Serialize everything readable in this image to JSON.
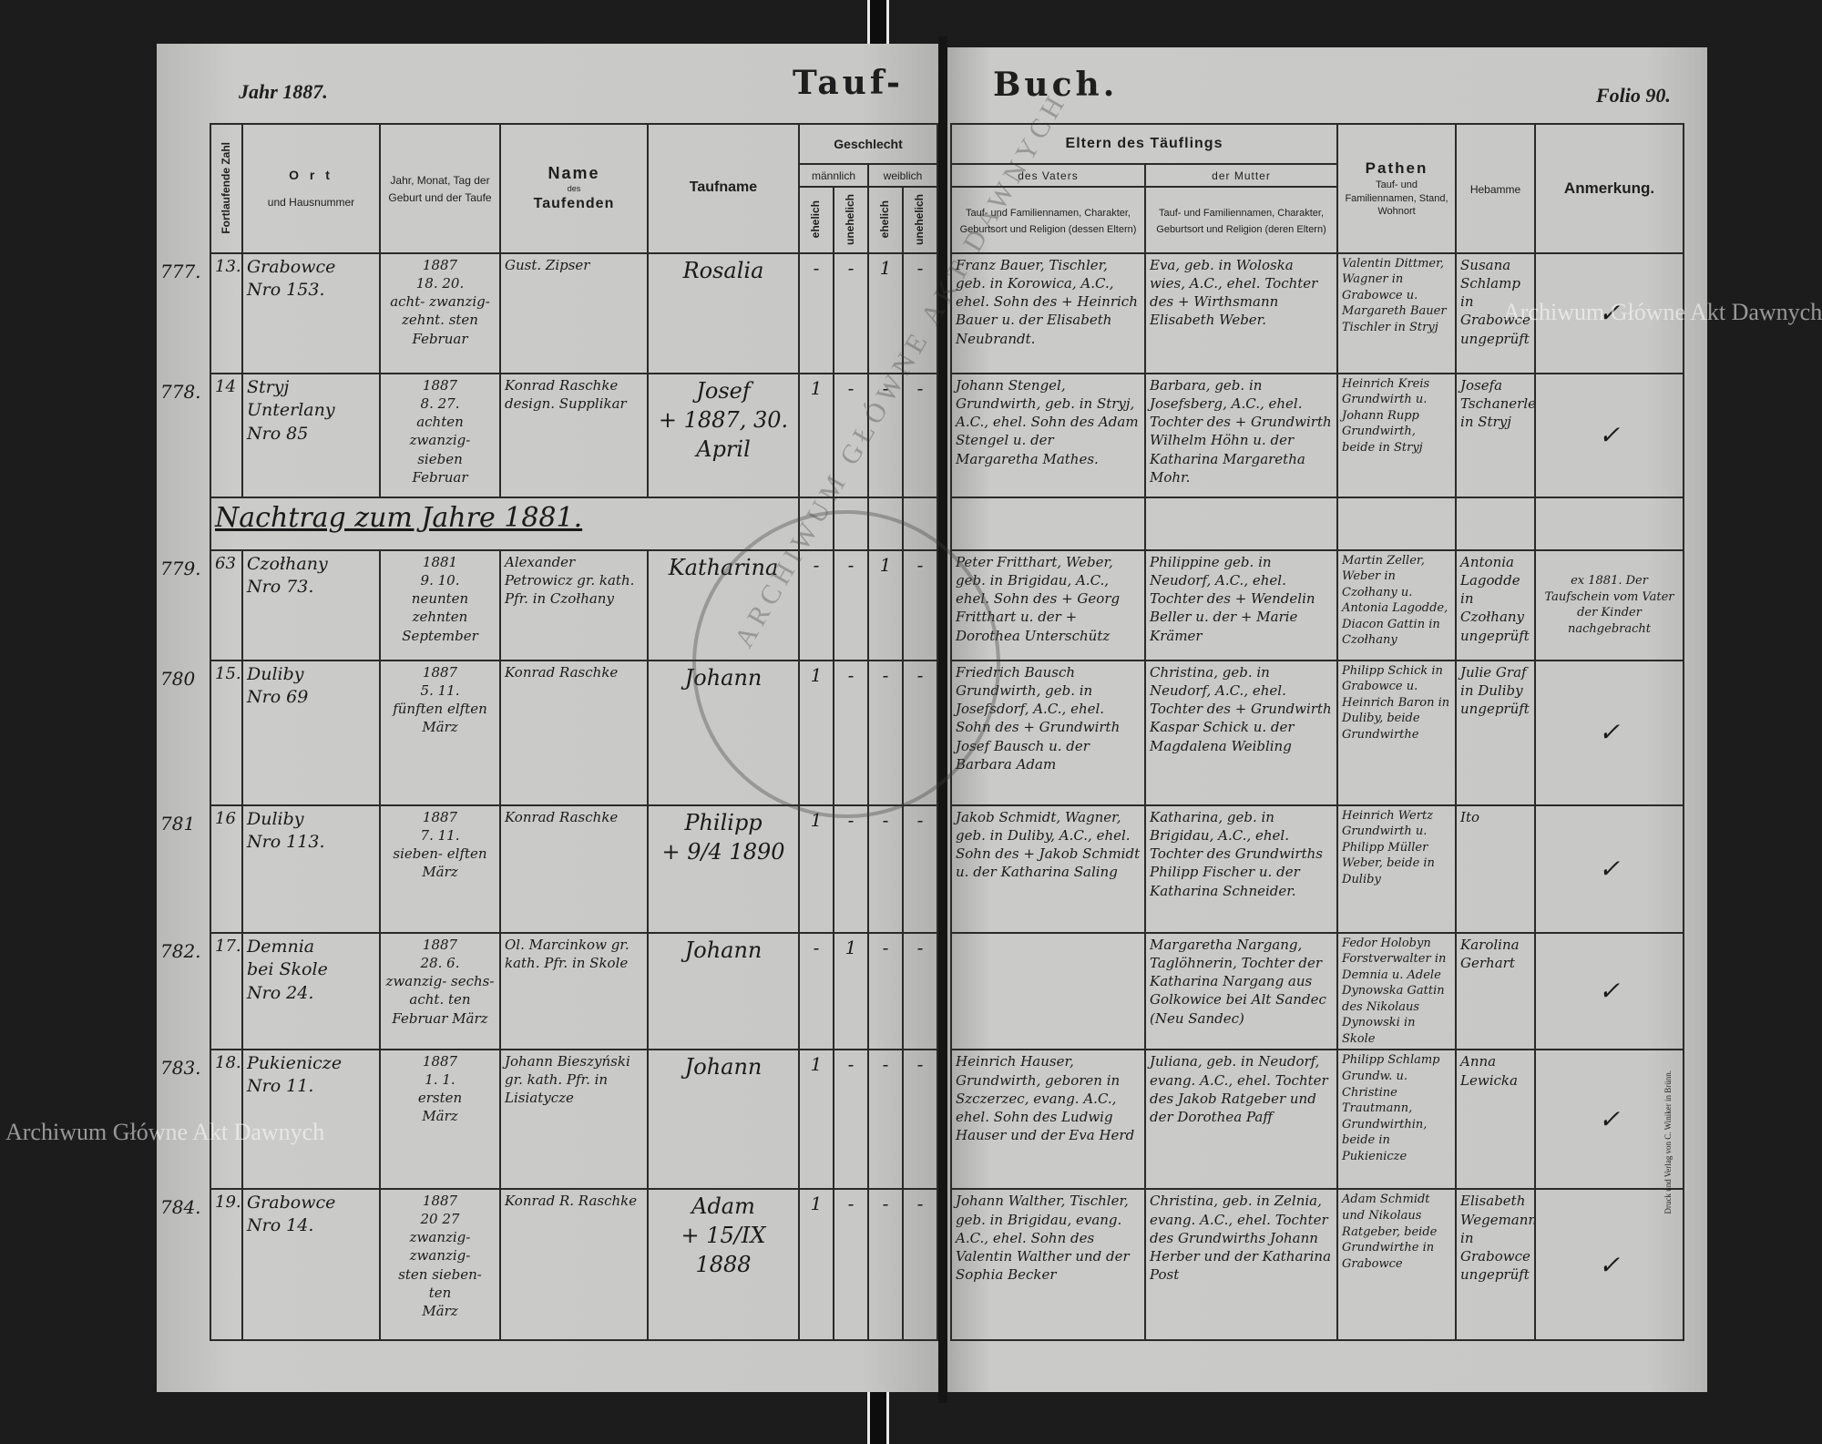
{
  "header": {
    "year_label": "Jahr 1887.",
    "title_left": "Tauf-",
    "title_right": "Buch.",
    "folio_label": "Folio 90."
  },
  "columns_left": {
    "fortlaufende_zahl": "Fortlaufende Zahl",
    "ort": "O r t",
    "ort_sub": "und Hausnummer",
    "jahr": "Jahr, Monat, Tag der Geburt und der Taufe",
    "name": "Name",
    "name_des": "des",
    "name_taufenden": "Taufenden",
    "taufname": "Taufname",
    "geschlecht": "Geschlecht",
    "maennlich": "männlich",
    "weiblich": "weiblich",
    "ehelich": "ehelich",
    "unehelich": "unehelich"
  },
  "columns_right": {
    "eltern": "Eltern des Täuflings",
    "vater": "des Vaters",
    "mutter": "der Mutter",
    "vater_desc": "Tauf- und Familiennamen, Charakter, Geburtsort und Religion (dessen Eltern)",
    "mutter_desc": "Tauf- und Familiennamen, Charakter, Geburtsort und Religion (deren Eltern)",
    "pathen": "Pathen",
    "pathen_desc": "Tauf- und Familiennamen, Stand, Wohnort",
    "hebamme": "Hebamme",
    "anmerkung": "Anmerkung."
  },
  "rows": [
    {
      "type": "entry",
      "register_no": "777.",
      "no": "13.",
      "ort": "Grabowce\nNro 153.",
      "datum": "1887\n18.   20.\nacht-  zwanzig-\nzehnt.  sten\nFebruar",
      "taufender": "Gust. Zipser",
      "taufname": "Rosalia",
      "sex": [
        "-",
        "-",
        "1",
        "-"
      ],
      "vater": "Franz Bauer, Tischler, geb. in Korowica, A.C., ehel. Sohn des + Heinrich Bauer u. der Elisabeth Neubrandt.",
      "mutter": "Eva, geb. in Woloska wies, A.C., ehel. Tochter des + Wirthsmann Elisabeth Weber.",
      "pathen": "Valentin Dittmer, Wagner in Grabowce u. Margareth Bauer Tischler in Stryj",
      "hebamme": "Susana Schlamp in Grabowce ungeprüft",
      "anmerkung": "✓"
    },
    {
      "type": "entry",
      "register_no": "778.",
      "no": "14",
      "ort": "Stryj\nUnterlany\nNro 85",
      "datum": "1887\n8.    27.\nachten zwanzig-\nsieben\nFebruar",
      "taufender": "Konrad Raschke design. Supplikar",
      "taufname": "Josef\n+ 1887, 30. April",
      "sex": [
        "1",
        "-",
        "-",
        "-"
      ],
      "vater": "Johann Stengel, Grundwirth, geb. in Stryj, A.C., ehel. Sohn des Adam Stengel u. der Margaretha Mathes.",
      "mutter": "Barbara, geb. in Josefsberg, A.C., ehel. Tochter des + Grundwirth Wilhelm Höhn u. der Katharina Margaretha Mohr.",
      "pathen": "Heinrich Kreis Grundwirth u. Johann Rupp Grundwirth, beide in Stryj",
      "hebamme": "Josefa Tschanerle in Stryj",
      "anmerkung": "✓"
    },
    {
      "type": "note",
      "text": "Nachtrag zum Jahre 1881."
    },
    {
      "type": "entry",
      "register_no": "779.",
      "no": "63",
      "ort": "Czołhany\nNro 73.",
      "datum": "1881\n9.    10.\nneunten zehnten\nSeptember",
      "taufender": "Alexander Petrowicz gr. kath. Pfr. in Czołhany",
      "taufname": "Katharina",
      "sex": [
        "-",
        "-",
        "1",
        "-"
      ],
      "vater": "Peter Fritthart, Weber, geb. in Brigidau, A.C., ehel. Sohn des + Georg Fritthart u. der + Dorothea Unterschütz",
      "mutter": "Philippine geb. in Neudorf, A.C., ehel. Tochter des + Wendelin Beller u. der + Marie Krämer",
      "pathen": "Martin Zeller, Weber in Czołhany u. Antonia Lagodde, Diacon Gattin in Czołhany",
      "hebamme": "Antonia Lagodde in Czołhany ungeprüft",
      "anmerkung": "ex 1881. Der Taufschein vom Vater der Kinder nachgebracht"
    },
    {
      "type": "entry",
      "register_no": "780",
      "no": "15.",
      "ort": "Duliby\nNro 69",
      "datum": "1887\n5.    11.\nfünften elften\nMärz",
      "taufender": "Konrad Raschke",
      "taufname": "Johann",
      "sex": [
        "1",
        "-",
        "-",
        "-"
      ],
      "vater": "Friedrich Bausch Grundwirth, geb. in Josefsdorf, A.C., ehel. Sohn des + Grundwirth Josef Bausch u. der Barbara Adam",
      "mutter": "Christina, geb. in Neudorf, A.C., ehel. Tochter des + Grundwirth Kaspar Schick u. der Magdalena Weibling",
      "pathen": "Philipp Schick in Grabowce u. Heinrich Baron in Duliby, beide Grundwirthe",
      "hebamme": "Julie Graf in Duliby ungeprüft",
      "anmerkung": "✓"
    },
    {
      "type": "entry",
      "register_no": "781",
      "no": "16",
      "ort": "Duliby\nNro 113.",
      "datum": "1887\n7.    11.\nsieben- elften\nMärz",
      "taufender": "Konrad Raschke",
      "taufname": "Philipp\n+ 9/4 1890",
      "sex": [
        "1",
        "-",
        "-",
        "-"
      ],
      "vater": "Jakob Schmidt, Wagner, geb. in Duliby, A.C., ehel. Sohn des + Jakob Schmidt u. der Katharina Saling",
      "mutter": "Katharina, geb. in Brigidau, A.C., ehel. Tochter des Grundwirths Philipp Fischer u. der Katharina Schneider.",
      "pathen": "Heinrich Wertz Grundwirth u. Philipp Müller Weber, beide in Duliby",
      "hebamme": "Ito",
      "anmerkung": "✓"
    },
    {
      "type": "entry",
      "register_no": "782.",
      "no": "17.",
      "ort": "Demnia\nbei Skole\nNro 24.",
      "datum": "1887\n28.    6.\nzwanzig- sechs-\nacht.   ten\nFebruar März",
      "taufender": "Ol. Marcinkow gr. kath. Pfr. in Skole",
      "taufname": "Johann",
      "sex": [
        "-",
        "1",
        "-",
        "-"
      ],
      "vater": "",
      "mutter": "Margaretha Nargang, Taglöhnerin, Tochter der Katharina Nargang aus Golkowice bei Alt Sandec (Neu Sandec)",
      "pathen": "Fedor Holobyn Forstverwalter in Demnia u. Adele Dynowska Gattin des Nikolaus Dynowski in Skole",
      "hebamme": "Karolina Gerhart",
      "anmerkung": "✓"
    },
    {
      "type": "entry",
      "register_no": "783.",
      "no": "18.",
      "ort": "Pukienicze\nNro 11.",
      "datum": "1887\n1.    1.\nersten\nMärz",
      "taufender": "Johann Bieszyński gr. kath. Pfr. in Lisiatycze",
      "taufname": "Johann",
      "sex": [
        "1",
        "-",
        "-",
        "-"
      ],
      "vater": "Heinrich Hauser, Grundwirth, geboren in Szczerzec, evang. A.C., ehel. Sohn des Ludwig Hauser und der Eva Herd",
      "mutter": "Juliana, geb. in Neudorf, evang. A.C., ehel. Tochter des Jakob Ratgeber und der Dorothea Paff",
      "pathen": "Philipp Schlamp Grundw. u. Christine Trautmann, Grundwirthin, beide in Pukienicze",
      "hebamme": "Anna Lewicka",
      "anmerkung": "✓"
    },
    {
      "type": "entry",
      "register_no": "784.",
      "no": "19.",
      "ort": "Grabowce\nNro 14.",
      "datum": "1887\n20    27\nzwanzig- zwanzig-\nsten  sieben-\nten\nMärz",
      "taufender": "Konrad R. Raschke",
      "taufname": "Adam\n+ 15/IX 1888",
      "sex": [
        "1",
        "-",
        "-",
        "-"
      ],
      "vater": "Johann Walther, Tischler, geb. in Brigidau, evang. A.C., ehel. Sohn des Valentin Walther und der Sophia Becker",
      "mutter": "Christina, geb. in Zelnia, evang. A.C., ehel. Tochter des Grundwirths Johann Herber und der Katharina Post",
      "pathen": "Adam Schmidt und Nikolaus Ratgeber, beide Grundwirthe in Grabowce",
      "hebamme": "Elisabeth Wegemann in Grabowce ungeprüft",
      "anmerkung": "✓"
    }
  ],
  "watermark": "Archiwum Główne Akt Dawnych",
  "stamp": "ARCHIWUM GŁÓWNE AKT DAWNYCH",
  "printer": "Druck und Verlag von C. Winiker in Brünn."
}
